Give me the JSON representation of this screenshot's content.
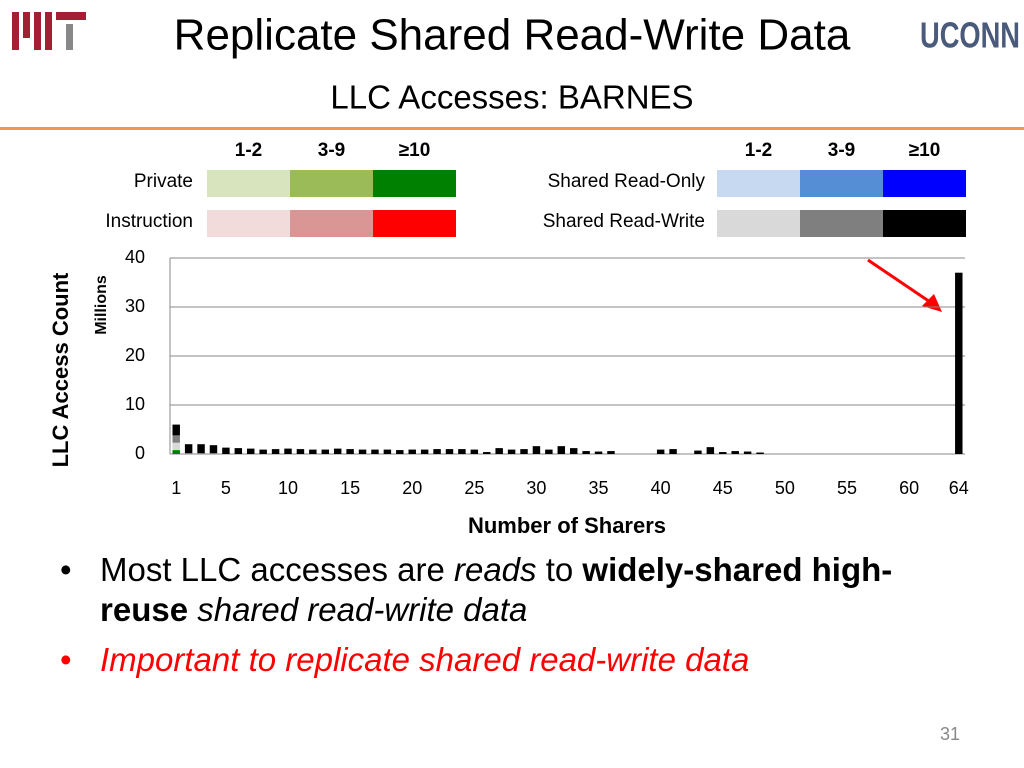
{
  "header": {
    "title": "Replicate Shared Read-Write Data",
    "subtitle": "LLC Accesses: BARNES",
    "logo_right": "UCONN"
  },
  "chart_data": {
    "type": "stacked_bar",
    "ylabel": "LLC Access Count",
    "yunit": "Millions",
    "xlabel": "Number of Sharers",
    "legend_columns": [
      "1-2",
      "3-9",
      "≥10"
    ],
    "legend_groups": [
      "Private",
      "Instruction",
      "Shared Read-Only",
      "Shared Read-Write"
    ],
    "x": [
      1,
      2,
      3,
      4,
      5,
      6,
      7,
      8,
      9,
      10,
      11,
      12,
      13,
      14,
      15,
      16,
      17,
      18,
      19,
      20,
      21,
      22,
      23,
      24,
      25,
      26,
      27,
      28,
      29,
      30,
      31,
      32,
      33,
      34,
      35,
      36,
      37,
      38,
      39,
      40,
      41,
      42,
      43,
      44,
      45,
      46,
      47,
      48,
      49,
      50,
      51,
      52,
      53,
      54,
      55,
      56,
      57,
      58,
      59,
      60,
      61,
      62,
      63,
      64
    ],
    "xlim": [
      0.5,
      64.5
    ],
    "xticks": [
      1,
      5,
      10,
      15,
      20,
      25,
      30,
      35,
      40,
      45,
      50,
      55,
      60,
      64
    ],
    "ylim": [
      0,
      40
    ],
    "yticks": [
      0,
      10,
      20,
      30,
      40
    ],
    "grid": true,
    "series": [
      {
        "color": "#d7e4bd",
        "values": [
          0,
          0,
          0,
          0,
          0,
          0,
          0,
          0,
          0,
          0,
          0,
          0,
          0,
          0,
          0,
          0,
          0,
          0,
          0,
          0,
          0,
          0,
          0,
          0,
          0,
          0,
          0,
          0,
          0,
          0,
          0,
          0,
          0,
          0,
          0,
          0,
          0,
          0,
          0,
          0,
          0,
          0,
          0,
          0,
          0,
          0,
          0,
          0,
          0,
          0,
          0,
          0,
          0,
          0,
          0,
          0,
          0,
          0,
          0,
          0,
          0,
          0,
          0,
          0
        ]
      },
      {
        "color": "#9bbb59",
        "values": [
          0,
          0,
          0,
          0,
          0,
          0,
          0,
          0,
          0,
          0,
          0,
          0,
          0,
          0,
          0,
          0,
          0,
          0,
          0,
          0,
          0,
          0,
          0,
          0,
          0,
          0,
          0,
          0,
          0,
          0,
          0,
          0,
          0,
          0,
          0,
          0,
          0,
          0,
          0,
          0,
          0,
          0,
          0,
          0,
          0,
          0,
          0,
          0,
          0,
          0,
          0,
          0,
          0,
          0,
          0,
          0,
          0,
          0,
          0,
          0,
          0,
          0,
          0,
          0
        ]
      },
      {
        "color": "#008000",
        "values": [
          0.8,
          0,
          0,
          0,
          0,
          0,
          0,
          0,
          0,
          0,
          0,
          0,
          0,
          0,
          0,
          0,
          0,
          0,
          0,
          0,
          0,
          0,
          0,
          0,
          0,
          0,
          0,
          0,
          0,
          0,
          0,
          0,
          0,
          0,
          0,
          0,
          0,
          0,
          0,
          0,
          0,
          0,
          0,
          0,
          0,
          0,
          0,
          0,
          0,
          0,
          0,
          0,
          0,
          0,
          0,
          0,
          0,
          0,
          0,
          0,
          0,
          0,
          0,
          0
        ]
      },
      {
        "color": "#f2dcdb",
        "values": [
          0,
          0,
          0,
          0,
          0,
          0,
          0,
          0,
          0,
          0,
          0,
          0,
          0,
          0,
          0,
          0,
          0,
          0,
          0,
          0,
          0,
          0,
          0,
          0,
          0,
          0,
          0,
          0,
          0,
          0,
          0,
          0,
          0,
          0,
          0,
          0,
          0,
          0,
          0,
          0,
          0,
          0,
          0,
          0,
          0,
          0,
          0,
          0,
          0,
          0,
          0,
          0,
          0,
          0,
          0,
          0,
          0,
          0,
          0,
          0,
          0,
          0,
          0,
          0
        ]
      },
      {
        "color": "#d99694",
        "values": [
          0,
          0,
          0,
          0,
          0,
          0,
          0,
          0,
          0,
          0,
          0,
          0,
          0,
          0,
          0,
          0,
          0,
          0,
          0,
          0,
          0,
          0,
          0,
          0,
          0,
          0,
          0,
          0,
          0,
          0,
          0,
          0,
          0,
          0,
          0,
          0,
          0,
          0,
          0,
          0,
          0,
          0,
          0,
          0,
          0,
          0,
          0,
          0,
          0,
          0,
          0,
          0,
          0,
          0,
          0,
          0,
          0,
          0,
          0,
          0,
          0,
          0,
          0,
          0
        ]
      },
      {
        "color": "#ff0000",
        "values": [
          0,
          0,
          0,
          0,
          0,
          0,
          0,
          0,
          0,
          0,
          0,
          0,
          0,
          0,
          0,
          0,
          0,
          0,
          0,
          0,
          0,
          0,
          0,
          0,
          0,
          0,
          0,
          0,
          0,
          0,
          0,
          0,
          0,
          0,
          0,
          0,
          0,
          0,
          0,
          0,
          0,
          0,
          0,
          0,
          0,
          0,
          0,
          0,
          0,
          0,
          0,
          0,
          0,
          0,
          0,
          0,
          0,
          0,
          0,
          0,
          0,
          0,
          0,
          0
        ]
      },
      {
        "color": "#c6d9f1",
        "values": [
          0,
          0,
          0,
          0,
          0,
          0,
          0,
          0,
          0,
          0,
          0,
          0,
          0,
          0,
          0,
          0,
          0,
          0,
          0,
          0,
          0,
          0,
          0,
          0,
          0,
          0,
          0,
          0,
          0,
          0,
          0,
          0,
          0,
          0,
          0,
          0,
          0,
          0,
          0,
          0,
          0,
          0,
          0,
          0,
          0,
          0,
          0,
          0,
          0,
          0,
          0,
          0,
          0,
          0,
          0,
          0,
          0,
          0,
          0,
          0,
          0,
          0,
          0,
          0
        ]
      },
      {
        "color": "#558ed5",
        "values": [
          0,
          0,
          0,
          0,
          0,
          0,
          0,
          0,
          0,
          0,
          0,
          0,
          0,
          0,
          0,
          0,
          0,
          0,
          0,
          0,
          0,
          0,
          0,
          0,
          0,
          0,
          0,
          0,
          0,
          0,
          0,
          0,
          0,
          0,
          0,
          0,
          0,
          0,
          0,
          0,
          0,
          0,
          0,
          0,
          0,
          0,
          0,
          0,
          0,
          0,
          0,
          0,
          0,
          0,
          0,
          0,
          0,
          0,
          0,
          0,
          0,
          0,
          0,
          0
        ]
      },
      {
        "color": "#0000ff",
        "values": [
          0,
          0,
          0,
          0,
          0,
          0,
          0,
          0,
          0,
          0,
          0,
          0,
          0,
          0,
          0,
          0,
          0,
          0,
          0,
          0,
          0,
          0,
          0,
          0,
          0,
          0,
          0,
          0,
          0,
          0,
          0,
          0,
          0,
          0,
          0,
          0,
          0,
          0,
          0,
          0,
          0,
          0,
          0,
          0,
          0,
          0,
          0,
          0,
          0,
          0,
          0,
          0,
          0,
          0,
          0,
          0,
          0,
          0,
          0,
          0,
          0,
          0,
          0,
          0
        ]
      },
      {
        "color": "#d9d9d9",
        "values": [
          1.5,
          0,
          0,
          0,
          0,
          0,
          0,
          0,
          0,
          0,
          0,
          0,
          0,
          0,
          0,
          0,
          0,
          0,
          0,
          0,
          0,
          0,
          0,
          0,
          0,
          0,
          0,
          0,
          0,
          0,
          0,
          0,
          0,
          0,
          0,
          0,
          0,
          0,
          0,
          0,
          0,
          0,
          0,
          0,
          0,
          0,
          0,
          0,
          0,
          0,
          0,
          0,
          0,
          0,
          0,
          0,
          0,
          0,
          0,
          0,
          0,
          0,
          0,
          0
        ]
      },
      {
        "color": "#7f7f7f",
        "values": [
          1.5,
          0.2,
          0.2,
          0.2,
          0,
          0,
          0,
          0,
          0,
          0,
          0,
          0,
          0,
          0,
          0,
          0,
          0,
          0,
          0,
          0,
          0,
          0,
          0,
          0,
          0,
          0,
          0,
          0,
          0,
          0,
          0,
          0,
          0,
          0,
          0,
          0,
          0,
          0,
          0,
          0,
          0,
          0,
          0,
          0,
          0,
          0,
          0,
          0,
          0,
          0,
          0,
          0,
          0,
          0,
          0,
          0,
          0,
          0,
          0,
          0,
          0,
          0,
          0,
          0
        ]
      },
      {
        "color": "#000000",
        "values": [
          2.2,
          1.8,
          1.8,
          1.6,
          1.3,
          1.2,
          1.1,
          0.9,
          1.0,
          1.1,
          1.0,
          0.9,
          0.9,
          1.1,
          1.0,
          0.9,
          0.9,
          0.9,
          0.8,
          0.9,
          0.9,
          1.0,
          1.0,
          1.0,
          0.9,
          0.4,
          1.2,
          0.9,
          1.0,
          1.6,
          0.9,
          1.6,
          1.2,
          0.6,
          0.5,
          0.6,
          0,
          0,
          0,
          0.9,
          1.0,
          0,
          0.7,
          1.4,
          0.4,
          0.6,
          0.5,
          0.3,
          0,
          0,
          0,
          0,
          0,
          0,
          0,
          0,
          0,
          0,
          0,
          0,
          0,
          0,
          0,
          37
        ]
      }
    ]
  },
  "bullets": [
    [
      {
        "text": "Most LLC accesses are ",
        "bold": false,
        "italic": false
      },
      {
        "text": "reads",
        "bold": false,
        "italic": true
      },
      {
        "text": " to ",
        "bold": false,
        "italic": false
      },
      {
        "text": "widely-shared high-reuse",
        "bold": true,
        "italic": false
      },
      {
        "text": " shared read-write data",
        "bold": false,
        "italic": true
      }
    ],
    [
      {
        "text": "Important to replicate shared read-write data",
        "bold": false,
        "italic": true,
        "color": "#ff0000"
      }
    ]
  ],
  "page_number": "31"
}
